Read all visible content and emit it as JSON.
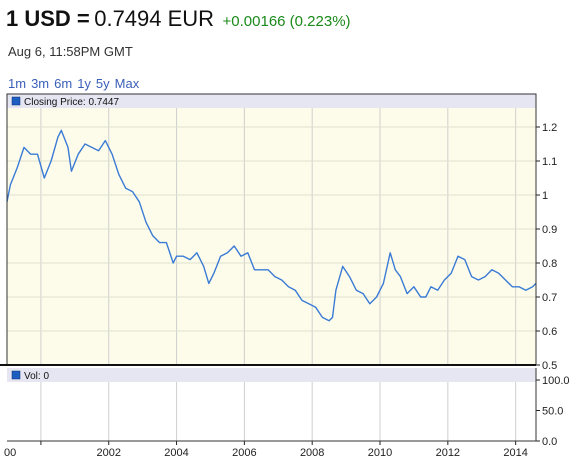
{
  "header": {
    "pair_prefix": "1 USD =",
    "rate": "0.7494 EUR",
    "change": "+0.00166 (0.223%)",
    "timestamp": "Aug 6, 11:58PM GMT"
  },
  "range_links": [
    "1m",
    "3m",
    "6m",
    "1y",
    "5y",
    "Max"
  ],
  "colors": {
    "line": "#3a7bd5",
    "plot_bg": "#fdfcea",
    "legend_bar": "#e6e6f2",
    "change_positive": "#1a8a1a",
    "link": "#3a5fb8"
  },
  "chart_data": [
    {
      "type": "line",
      "legend": "Closing Price: 0.7447",
      "xlim": [
        1999.0,
        2014.6
      ],
      "ylim": [
        0.5,
        1.25
      ],
      "x_ticks": [
        "00",
        "2002",
        "2004",
        "2006",
        "2008",
        "2010",
        "2012",
        "2014"
      ],
      "x_tick_values": [
        2000,
        2002,
        2004,
        2006,
        2008,
        2010,
        2012,
        2014
      ],
      "y_ticks": [
        {
          "v": 1.2,
          "label": "1.2"
        },
        {
          "v": 1.1,
          "label": "1.1"
        },
        {
          "v": 1.0,
          "label": "1"
        },
        {
          "v": 0.9,
          "label": "0.9"
        },
        {
          "v": 0.8,
          "label": "0.8"
        },
        {
          "v": 0.7,
          "label": "0.7"
        },
        {
          "v": 0.6,
          "label": "0.6"
        },
        {
          "v": 0.5,
          "label": "0.5"
        }
      ],
      "grid": true,
      "series": [
        {
          "x": [
            1999.0,
            1999.1,
            1999.3,
            1999.5,
            1999.7,
            1999.9,
            2000.1,
            2000.3,
            2000.5,
            2000.6,
            2000.8,
            2000.9,
            2001.1,
            2001.3,
            2001.5,
            2001.7,
            2001.9,
            2002.1,
            2002.3,
            2002.5,
            2002.7,
            2002.9,
            2003.1,
            2003.3,
            2003.5,
            2003.7,
            2003.9,
            2004.0,
            2004.2,
            2004.4,
            2004.6,
            2004.8,
            2004.95,
            2005.1,
            2005.3,
            2005.5,
            2005.7,
            2005.9,
            2006.1,
            2006.3,
            2006.5,
            2006.7,
            2006.9,
            2007.1,
            2007.3,
            2007.5,
            2007.7,
            2007.9,
            2008.1,
            2008.3,
            2008.5,
            2008.6,
            2008.7,
            2008.9,
            2009.1,
            2009.3,
            2009.5,
            2009.7,
            2009.9,
            2010.1,
            2010.3,
            2010.45,
            2010.6,
            2010.8,
            2011.0,
            2011.2,
            2011.35,
            2011.5,
            2011.7,
            2011.9,
            2012.1,
            2012.3,
            2012.5,
            2012.7,
            2012.9,
            2013.1,
            2013.3,
            2013.5,
            2013.7,
            2013.9,
            2014.1,
            2014.3,
            2014.5,
            2014.6
          ],
          "y": [
            0.98,
            1.03,
            1.08,
            1.14,
            1.12,
            1.12,
            1.05,
            1.1,
            1.17,
            1.19,
            1.14,
            1.07,
            1.12,
            1.15,
            1.14,
            1.13,
            1.16,
            1.12,
            1.06,
            1.02,
            1.01,
            0.98,
            0.92,
            0.88,
            0.86,
            0.86,
            0.8,
            0.82,
            0.82,
            0.81,
            0.83,
            0.79,
            0.74,
            0.77,
            0.82,
            0.83,
            0.85,
            0.82,
            0.83,
            0.78,
            0.78,
            0.78,
            0.76,
            0.75,
            0.73,
            0.72,
            0.69,
            0.68,
            0.67,
            0.64,
            0.63,
            0.64,
            0.72,
            0.79,
            0.76,
            0.72,
            0.71,
            0.68,
            0.7,
            0.74,
            0.83,
            0.78,
            0.76,
            0.71,
            0.73,
            0.7,
            0.7,
            0.73,
            0.72,
            0.75,
            0.77,
            0.82,
            0.81,
            0.76,
            0.75,
            0.76,
            0.78,
            0.77,
            0.75,
            0.73,
            0.73,
            0.72,
            0.73,
            0.74
          ]
        }
      ]
    },
    {
      "type": "bar",
      "legend": "Vol: 0",
      "ylim": [
        0,
        100
      ],
      "y_ticks": [
        {
          "v": 100,
          "label": "100.0"
        },
        {
          "v": 50,
          "label": "50.0"
        },
        {
          "v": 0,
          "label": "0.0"
        }
      ],
      "values": []
    }
  ]
}
